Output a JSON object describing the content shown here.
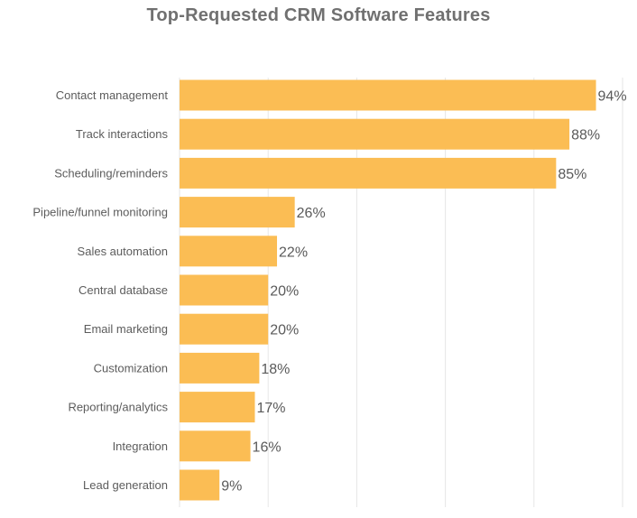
{
  "chart_data": {
    "type": "bar",
    "orientation": "horizontal",
    "title": "Top-Requested CRM Software Features",
    "xlabel": "",
    "ylabel": "",
    "xlim": [
      0,
      100
    ],
    "grid": true,
    "bar_color": "#FBBD54",
    "categories": [
      "Contact management",
      "Track interactions",
      "Scheduling/reminders",
      "Pipeline/funnel monitoring",
      "Sales automation",
      "Central database",
      "Email marketing",
      "Customization",
      "Reporting/analytics",
      "Integration",
      "Lead generation"
    ],
    "values": [
      94,
      88,
      85,
      26,
      22,
      20,
      20,
      18,
      17,
      16,
      9
    ],
    "value_labels": [
      "94%",
      "88%",
      "85%",
      "26%",
      "22%",
      "20%",
      "20%",
      "18%",
      "17%",
      "16%",
      "9%"
    ]
  }
}
